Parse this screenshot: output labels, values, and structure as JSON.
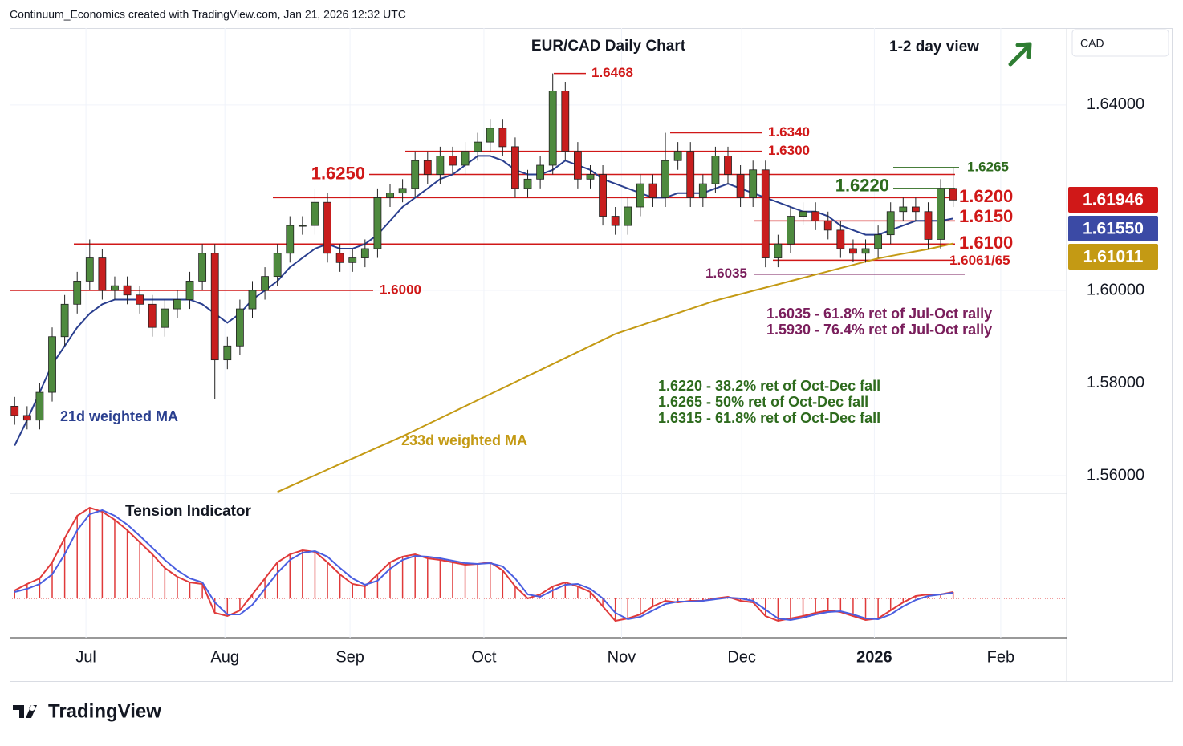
{
  "chart_data": [
    {
      "type": "candlestick",
      "header": "Continuum_Economics created with TradingView.com, Jan 21, 2026 12:32 UTC",
      "title": "EUR/CAD Daily Chart",
      "subtitle": "1-2 day view",
      "axis_label": "CAD",
      "footer": "TradingView",
      "categories": [
        null,
        null,
        null,
        null,
        null,
        null,
        null,
        null,
        null,
        null,
        null,
        null,
        null,
        null,
        null,
        null,
        null,
        null,
        null,
        null,
        null,
        null,
        null,
        null,
        null,
        null,
        null,
        null,
        null,
        null,
        null,
        null,
        null,
        null,
        null,
        null,
        null,
        null,
        null,
        null,
        null,
        null,
        null,
        null,
        null,
        null,
        null,
        null,
        null,
        null,
        null,
        null,
        null,
        null,
        null,
        null,
        null,
        null,
        null,
        null,
        null,
        null,
        null,
        null,
        null,
        null,
        null,
        null,
        null,
        null,
        null,
        null,
        null,
        null,
        null,
        null
      ],
      "xlim": [
        -0.4,
        84
      ],
      "xticks": [
        {
          "value": 5.7,
          "label": "Jul"
        },
        {
          "value": 16.8,
          "label": "Aug"
        },
        {
          "value": 26.8,
          "label": "Sep"
        },
        {
          "value": 37.5,
          "label": "Oct"
        },
        {
          "value": 48.5,
          "label": "Nov"
        },
        {
          "value": 58.1,
          "label": "Dec"
        },
        {
          "value": 68.7,
          "label": "2026"
        },
        {
          "value": 78.8,
          "label": "Feb"
        }
      ],
      "ylim": [
        1.5562,
        1.6566
      ],
      "yticks": [
        {
          "value": 1.64,
          "label": "1.64000"
        },
        {
          "value": 1.6,
          "label": "1.60000"
        },
        {
          "value": 1.58,
          "label": "1.58000"
        },
        {
          "value": 1.56,
          "label": "1.56000"
        }
      ],
      "grid": true,
      "up_color": "#4e8a3e",
      "down_color": "#c81e1e",
      "open": [
        1.575,
        1.573,
        1.572,
        1.578,
        1.59,
        1.597,
        1.602,
        1.607,
        1.6,
        1.601,
        1.599,
        1.597,
        1.592,
        1.596,
        1.598,
        1.602,
        1.608,
        1.585,
        1.588,
        1.596,
        1.6,
        1.603,
        1.608,
        1.614,
        1.614,
        1.619,
        1.608,
        1.606,
        1.607,
        1.609,
        1.62,
        1.621,
        1.622,
        1.628,
        1.625,
        1.629,
        1.627,
        1.63,
        1.632,
        1.635,
        1.631,
        1.622,
        1.624,
        1.627,
        1.643,
        1.63,
        1.624,
        1.625,
        1.616,
        1.614,
        1.618,
        1.623,
        1.62,
        1.628,
        1.63,
        1.62,
        1.623,
        1.629,
        1.625,
        1.62,
        1.626,
        1.607,
        1.61,
        1.616,
        1.617,
        1.615,
        1.613,
        1.609,
        1.608,
        1.609,
        1.612,
        1.617,
        1.618,
        1.617,
        1.611,
        1.622
      ],
      "high": [
        1.577,
        1.575,
        1.58,
        1.592,
        1.599,
        1.604,
        1.611,
        1.609,
        1.603,
        1.603,
        1.601,
        1.599,
        1.598,
        1.6,
        1.604,
        1.61,
        1.61,
        1.59,
        1.598,
        1.602,
        1.605,
        1.61,
        1.616,
        1.616,
        1.622,
        1.621,
        1.61,
        1.609,
        1.611,
        1.622,
        1.623,
        1.624,
        1.63,
        1.63,
        1.631,
        1.631,
        1.632,
        1.634,
        1.637,
        1.637,
        1.633,
        1.626,
        1.629,
        1.6468,
        1.645,
        1.632,
        1.627,
        1.627,
        1.618,
        1.62,
        1.625,
        1.625,
        1.634,
        1.632,
        1.632,
        1.625,
        1.631,
        1.631,
        1.627,
        1.628,
        1.628,
        1.612,
        1.618,
        1.619,
        1.619,
        1.617,
        1.615,
        1.611,
        1.611,
        1.614,
        1.619,
        1.62,
        1.62,
        1.619,
        1.624,
        1.6265
      ],
      "low": [
        1.571,
        1.57,
        1.57,
        1.576,
        1.588,
        1.595,
        1.6,
        1.598,
        1.598,
        1.597,
        1.595,
        1.59,
        1.59,
        1.594,
        1.596,
        1.6,
        1.5765,
        1.583,
        1.586,
        1.594,
        1.598,
        1.601,
        1.606,
        1.612,
        1.612,
        1.606,
        1.604,
        1.604,
        1.605,
        1.607,
        1.618,
        1.619,
        1.62,
        1.623,
        1.623,
        1.625,
        1.625,
        1.628,
        1.63,
        1.629,
        1.62,
        1.62,
        1.622,
        1.625,
        1.628,
        1.622,
        1.622,
        1.614,
        1.612,
        1.612,
        1.616,
        1.618,
        1.618,
        1.626,
        1.618,
        1.618,
        1.621,
        1.623,
        1.618,
        1.618,
        1.605,
        1.605,
        1.608,
        1.614,
        1.613,
        1.611,
        1.607,
        1.6061,
        1.606,
        1.607,
        1.61,
        1.615,
        1.615,
        1.609,
        1.609,
        1.618
      ],
      "close": [
        1.573,
        1.572,
        1.578,
        1.59,
        1.597,
        1.602,
        1.607,
        1.6,
        1.601,
        1.599,
        1.597,
        1.592,
        1.596,
        1.598,
        1.602,
        1.608,
        1.585,
        1.588,
        1.596,
        1.6,
        1.603,
        1.608,
        1.614,
        1.614,
        1.619,
        1.608,
        1.606,
        1.607,
        1.609,
        1.62,
        1.621,
        1.622,
        1.628,
        1.625,
        1.629,
        1.627,
        1.63,
        1.632,
        1.635,
        1.631,
        1.622,
        1.624,
        1.627,
        1.643,
        1.63,
        1.624,
        1.625,
        1.616,
        1.614,
        1.618,
        1.623,
        1.62,
        1.628,
        1.63,
        1.62,
        1.623,
        1.629,
        1.625,
        1.62,
        1.626,
        1.607,
        1.61,
        1.616,
        1.617,
        1.615,
        1.613,
        1.609,
        1.608,
        1.609,
        1.612,
        1.617,
        1.618,
        1.617,
        1.611,
        1.622,
        1.6195
      ],
      "moving_averages": [
        {
          "name": "21d weighted MA",
          "color": "#2a3f8f",
          "values": [
            1.5665,
            1.572,
            1.578,
            1.584,
            1.588,
            1.592,
            1.595,
            1.597,
            1.598,
            1.598,
            1.598,
            1.598,
            1.598,
            1.598,
            1.598,
            1.597,
            1.595,
            1.593,
            1.595,
            1.598,
            1.6,
            1.602,
            1.605,
            1.607,
            1.609,
            1.61,
            1.609,
            1.609,
            1.61,
            1.612,
            1.615,
            1.618,
            1.62,
            1.622,
            1.624,
            1.625,
            1.627,
            1.629,
            1.629,
            1.628,
            1.626,
            1.625,
            1.625,
            1.626,
            1.628,
            1.627,
            1.626,
            1.624,
            1.623,
            1.622,
            1.621,
            1.62,
            1.62,
            1.621,
            1.621,
            1.621,
            1.622,
            1.623,
            1.622,
            1.621,
            1.62,
            1.619,
            1.618,
            1.617,
            1.617,
            1.616,
            1.614,
            1.613,
            1.612,
            1.612,
            1.613,
            1.614,
            1.615,
            1.615,
            1.615,
            1.6155
          ]
        },
        {
          "name": "233d weighted MA",
          "color": "#c49a14",
          "values": [
            null,
            null,
            null,
            null,
            null,
            null,
            null,
            null,
            null,
            null,
            null,
            null,
            null,
            null,
            null,
            null,
            null,
            null,
            null,
            null,
            null,
            1.5565,
            1.5577,
            1.5589,
            1.5601,
            1.5613,
            1.5625,
            1.5637,
            1.5649,
            1.5661,
            1.5673,
            1.5685,
            1.5698,
            1.5711,
            1.5724,
            1.5737,
            1.575,
            1.5763,
            1.5776,
            1.5789,
            1.5802,
            1.5815,
            1.5828,
            1.5841,
            1.5854,
            1.5867,
            1.588,
            1.5893,
            1.5906,
            1.5915,
            1.5924,
            1.5933,
            1.5942,
            1.5951,
            1.596,
            1.5969,
            1.5978,
            1.5985,
            1.5992,
            1.5999,
            1.6006,
            1.6013,
            1.602,
            1.6027,
            1.6034,
            1.6041,
            1.6048,
            1.6055,
            1.6062,
            1.6069,
            1.6074,
            1.6079,
            1.6084,
            1.6089,
            1.6095,
            1.6101
          ]
        }
      ],
      "levels": [
        {
          "value": 1.6468,
          "label": "1.6468",
          "color": "#d01818"
        },
        {
          "value": 1.634,
          "label": "1.6340",
          "color": "#d01818"
        },
        {
          "value": 1.63,
          "label": "1.6300",
          "color": "#d01818"
        },
        {
          "value": 1.625,
          "label": "1.6250",
          "color": "#d01818"
        },
        {
          "value": 1.6265,
          "label": "1.6265",
          "color": "#2e6b1e"
        },
        {
          "value": 1.622,
          "label": "1.6220",
          "color": "#2e6b1e"
        },
        {
          "value": 1.62,
          "label": "1.6200",
          "color": "#d01818"
        },
        {
          "value": 1.615,
          "label": "1.6150",
          "color": "#d01818"
        },
        {
          "value": 1.61,
          "label": "1.6100",
          "color": "#d01818"
        },
        {
          "value": 1.6065,
          "label": "1.6061/65",
          "color": "#d01818"
        },
        {
          "value": 1.6035,
          "label": "1.6035",
          "color": "#7a1e5c"
        },
        {
          "value": 1.6,
          "label": "1.6000",
          "color": "#d01818"
        }
      ],
      "notes": [
        {
          "text": "1.6035 - 61.8% ret of Jul-Oct rally",
          "color": "#7a1e5c"
        },
        {
          "text": "1.5930 - 76.4% ret of Jul-Oct rally",
          "color": "#7a1e5c"
        },
        {
          "text": "1.6220 - 38.2% ret of Oct-Dec fall",
          "color": "#2e6b1e"
        },
        {
          "text": "1.6265 - 50% ret of Oct-Dec fall",
          "color": "#2e6b1e"
        },
        {
          "text": "1.6315 - 61.8% ret of Oct-Dec fall",
          "color": "#2e6b1e"
        }
      ],
      "price_tags": [
        {
          "value": 1.61946,
          "color": "#d01818"
        },
        {
          "value": {
            "value": 1.6155,
            "label": "1.61550"
          },
          "color": "#3b4aa5"
        },
        {
          "value": 1.61011,
          "color": "#c49a14"
        }
      ]
    },
    {
      "type": "bar",
      "title": "Tension Indicator",
      "ylim": [
        -49,
        131
      ],
      "color": "#e03a3a",
      "values": [
        10,
        18,
        25,
        45,
        75,
        103,
        113,
        108,
        98,
        85,
        70,
        55,
        38,
        27,
        20,
        18,
        -18,
        -22,
        -15,
        5,
        25,
        45,
        55,
        60,
        58,
        45,
        30,
        18,
        15,
        30,
        45,
        52,
        55,
        50,
        48,
        45,
        42,
        43,
        45,
        35,
        15,
        0,
        5,
        15,
        20,
        15,
        8,
        -10,
        -28,
        -25,
        -20,
        -10,
        -3,
        -5,
        -3,
        -3,
        0,
        2,
        -3,
        -5,
        -22,
        -28,
        -25,
        -22,
        -18,
        -15,
        -17,
        -22,
        -27,
        -25,
        -15,
        -5,
        3,
        5,
        5,
        8
      ],
      "signal_color": "#4a5ee0",
      "signal_values": [
        8,
        12,
        18,
        30,
        55,
        85,
        105,
        110,
        103,
        92,
        78,
        63,
        48,
        35,
        25,
        20,
        -5,
        -20,
        -20,
        -8,
        12,
        32,
        48,
        57,
        59,
        52,
        38,
        25,
        17,
        22,
        37,
        48,
        53,
        52,
        50,
        47,
        44,
        43,
        44,
        40,
        25,
        5,
        2,
        10,
        17,
        18,
        12,
        0,
        -18,
        -26,
        -23,
        -15,
        -7,
        -4,
        -4,
        -3,
        -1,
        1,
        0,
        -3,
        -14,
        -25,
        -27,
        -24,
        -20,
        -17,
        -16,
        -20,
        -25,
        -26,
        -20,
        -10,
        -2,
        3,
        5,
        7
      ]
    }
  ]
}
